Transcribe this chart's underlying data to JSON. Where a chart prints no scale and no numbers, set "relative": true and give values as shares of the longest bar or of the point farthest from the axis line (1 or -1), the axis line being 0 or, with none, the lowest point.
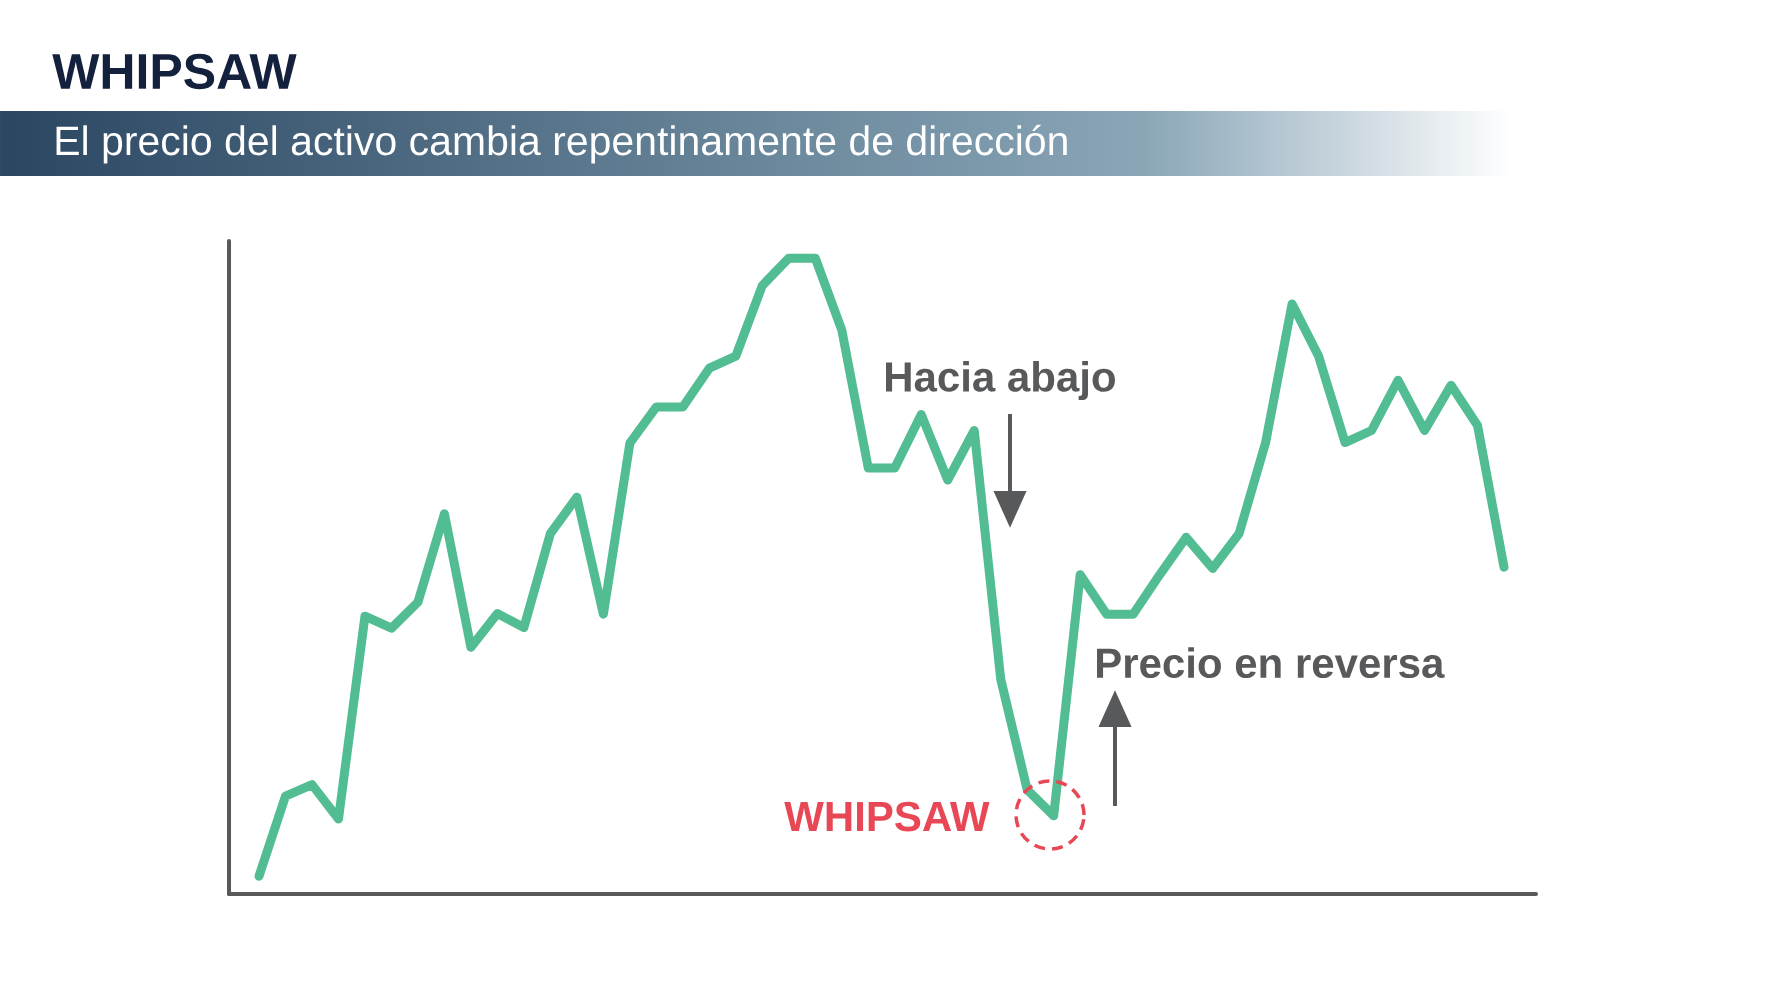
{
  "chart_data": {
    "type": "line",
    "title": "WHIPSAW",
    "subtitle": "El precio del activo cambia repentinamente de dirección",
    "categories": [
      null,
      null,
      null,
      null,
      null,
      null,
      null,
      null,
      null,
      null,
      null,
      null,
      null,
      null,
      null,
      null,
      null,
      null,
      null,
      null,
      null,
      null,
      null,
      null,
      null,
      null,
      null,
      null,
      null,
      null,
      null,
      null,
      null,
      null,
      null,
      null,
      null,
      null,
      null,
      null,
      null,
      null,
      null,
      null,
      null,
      null,
      null,
      null
    ],
    "values": [
      0.028,
      0.154,
      0.172,
      0.118,
      0.437,
      0.418,
      0.459,
      0.598,
      0.388,
      0.441,
      0.419,
      0.567,
      0.624,
      0.44,
      0.709,
      0.766,
      0.766,
      0.827,
      0.846,
      0.957,
      1,
      1,
      0.887,
      0.67,
      0.67,
      0.754,
      0.651,
      0.729,
      0.338,
      0.164,
      0.123,
      0.502,
      0.44,
      0.44,
      0.502,
      0.561,
      0.512,
      0.567,
      0.71,
      0.928,
      0.846,
      0.71,
      0.729,
      0.808,
      0.729,
      0.8,
      0.737,
      0.514
    ],
    "color": "#52bd92",
    "relative": true,
    "annotations": [
      "Hacia abajo",
      "Precio en reversa",
      "WHIPSAW"
    ]
  }
}
